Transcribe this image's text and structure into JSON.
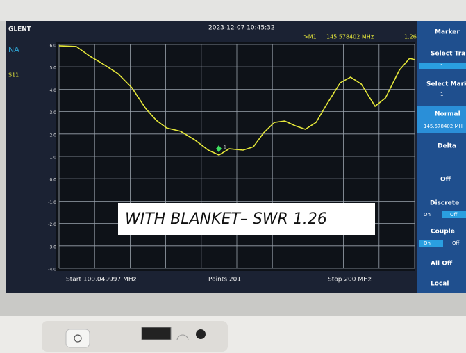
{
  "header": {
    "brand": "GLENT",
    "mode": "NA",
    "datetime": "2023-12-07 10:45:32",
    "marker": ">M1",
    "marker_freq": "145.578402 MHz",
    "marker_value": "1.26"
  },
  "chart_data": {
    "type": "line",
    "x": [
      100.05,
      104.9,
      108.8,
      112.7,
      116.6,
      120.5,
      124.4,
      127.4,
      130.3,
      134.2,
      138.1,
      142.0,
      145.0,
      147.9,
      151.8,
      154.7,
      157.6,
      160.6,
      163.5,
      166.4,
      169.3,
      172.3,
      175.2,
      179.1,
      182.0,
      185.0,
      188.9,
      191.8,
      195.7,
      198.6,
      200.0
    ],
    "series": [
      {
        "name": "S11",
        "color": "#e6e83a",
        "values": [
          5.94,
          5.91,
          5.47,
          5.1,
          4.7,
          4.07,
          3.14,
          2.61,
          2.27,
          2.12,
          1.75,
          1.28,
          1.06,
          1.34,
          1.28,
          1.43,
          2.06,
          2.52,
          2.58,
          2.37,
          2.21,
          2.52,
          3.3,
          4.29,
          4.54,
          4.23,
          3.24,
          3.61,
          4.85,
          5.38,
          5.32
        ]
      }
    ],
    "xlim": [
      100.05,
      200
    ],
    "ylim": [
      -4,
      6
    ],
    "yticks": [
      {
        "value": 6,
        "label": "6.0"
      },
      {
        "value": 5,
        "label": "5.0"
      },
      {
        "value": 4,
        "label": "4.0"
      },
      {
        "value": 3,
        "label": "3.0"
      },
      {
        "value": 2,
        "label": "2.0"
      },
      {
        "value": 1,
        "label": "1.0"
      },
      {
        "value": 0,
        "label": "0.0"
      },
      {
        "value": -1,
        "label": "-1.0"
      },
      {
        "value": -2,
        "label": "-2.0"
      },
      {
        "value": -3,
        "label": "-3.0"
      },
      {
        "value": -4,
        "label": "-4.0"
      }
    ],
    "grid": true,
    "marker_label": "1"
  },
  "footer": {
    "start": "Start 100.049997 MHz",
    "points": "Points 201",
    "stop": "Stop 200 MHz"
  },
  "menu": {
    "title": "Marker",
    "select_trace": "Select Tra",
    "select_trace_value": "1",
    "select_marker": "Select Mark",
    "select_marker_value": "1",
    "normal": "Normal",
    "normal_value": "145.578402 MH",
    "delta": "Delta",
    "off": "Off",
    "discrete": "Discrete",
    "discrete_on": "On",
    "discrete_off": "Off",
    "couple": "Couple",
    "couple_on": "On",
    "couple_off": "Off",
    "all_off": "All Off",
    "local": "Local"
  },
  "overlay": "WITH BLANKET– SWR 1.26"
}
